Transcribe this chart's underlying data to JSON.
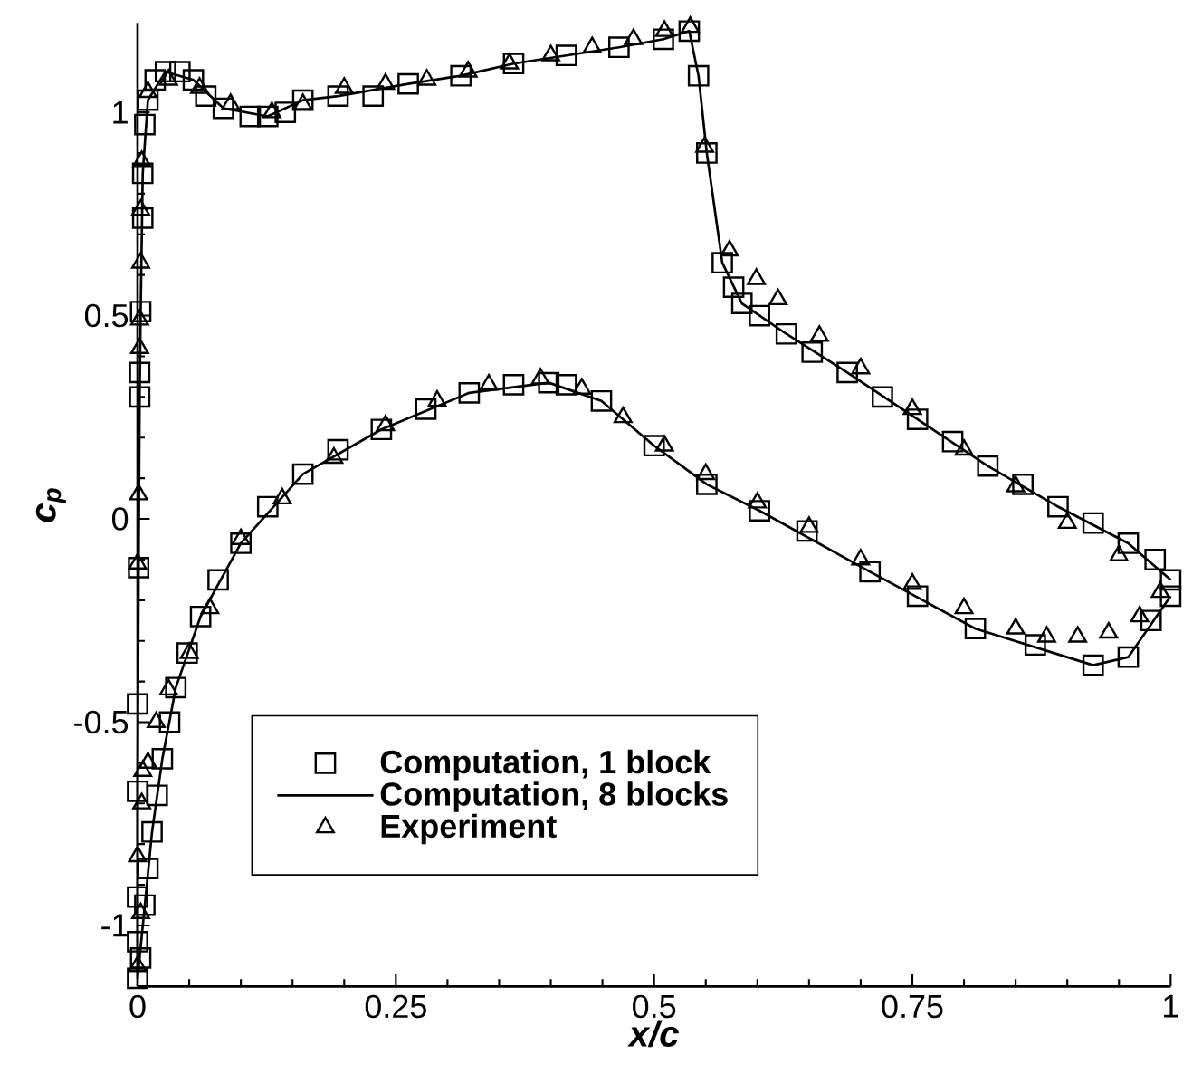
{
  "chart_data": {
    "type": "scatter",
    "xlabel": "*x/c*",
    "ylabel": "*c$_{p}$*",
    "xlim": [
      0,
      1
    ],
    "ylim": [
      -1.15,
      1.22
    ],
    "xticks": [
      0,
      0.25,
      0.5,
      0.75,
      1
    ],
    "yticks": [
      -1,
      -0.5,
      0,
      0.5,
      1
    ],
    "grid": false,
    "legend": "bottom left",
    "series": [
      {
        "name": "Computation, 1 block",
        "marker": "square",
        "color": "#000000",
        "x": [
          1.0,
          0.985,
          0.959,
          0.925,
          0.891,
          0.857,
          0.823,
          0.789,
          0.755,
          0.721,
          0.687,
          0.653,
          0.628,
          0.602,
          0.585,
          0.577,
          0.566,
          0.551,
          0.543,
          0.534,
          0.509,
          0.466,
          0.415,
          0.364,
          0.313,
          0.262,
          0.228,
          0.194,
          0.16,
          0.143,
          0.126,
          0.109,
          0.083,
          0.066,
          0.054,
          0.041,
          0.027,
          0.017,
          0.01,
          0.007,
          0.005,
          0.005,
          0.003,
          0.002,
          0.002,
          0.001,
          0.0,
          0.0,
          0.0,
          0.0,
          0.0,
          0.003,
          0.007,
          0.01,
          0.014,
          0.019,
          0.024,
          0.031,
          0.037,
          0.048,
          0.061,
          0.078,
          0.1,
          0.126,
          0.16,
          0.194,
          0.236,
          0.279,
          0.321,
          0.364,
          0.398,
          0.415,
          0.449,
          0.5,
          0.551,
          0.602,
          0.648,
          0.709,
          0.755,
          0.811,
          0.869,
          0.925,
          0.959,
          0.981,
          1.0
        ],
        "values": [
          -0.15,
          -0.1,
          -0.06,
          -0.01,
          0.03,
          0.085,
          0.13,
          0.19,
          0.245,
          0.3,
          0.36,
          0.41,
          0.455,
          0.5,
          0.53,
          0.57,
          0.63,
          0.9,
          1.09,
          1.2,
          1.18,
          1.16,
          1.14,
          1.12,
          1.09,
          1.07,
          1.04,
          1.04,
          1.03,
          1.0,
          0.99,
          0.99,
          1.01,
          1.04,
          1.08,
          1.1,
          1.1,
          1.08,
          1.03,
          0.97,
          0.85,
          0.74,
          0.51,
          0.36,
          0.3,
          -0.12,
          -0.455,
          -0.67,
          -0.93,
          -1.04,
          -1.13,
          -1.08,
          -0.95,
          -0.86,
          -0.77,
          -0.68,
          -0.59,
          -0.5,
          -0.415,
          -0.33,
          -0.24,
          -0.15,
          -0.06,
          0.03,
          0.11,
          0.17,
          0.22,
          0.27,
          0.31,
          0.33,
          0.335,
          0.33,
          0.29,
          0.18,
          0.085,
          0.02,
          -0.03,
          -0.13,
          -0.19,
          -0.27,
          -0.31,
          -0.36,
          -0.34,
          -0.25,
          -0.19
        ]
      },
      {
        "name": "Computation, 8 blocks",
        "type": "line",
        "marker": "none",
        "color": "#000000",
        "x": [
          1.0,
          0.959,
          0.891,
          0.823,
          0.755,
          0.687,
          0.628,
          0.585,
          0.566,
          0.551,
          0.543,
          0.534,
          0.509,
          0.466,
          0.415,
          0.364,
          0.313,
          0.262,
          0.194,
          0.16,
          0.126,
          0.083,
          0.054,
          0.027,
          0.01,
          0.005,
          0.003,
          0.002,
          0.001,
          0.0,
          0.0,
          0.0,
          0.007,
          0.014,
          0.024,
          0.037,
          0.061,
          0.1,
          0.16,
          0.236,
          0.321,
          0.398,
          0.449,
          0.5,
          0.551,
          0.602,
          0.709,
          0.811,
          0.925,
          0.959,
          1.0
        ],
        "values": [
          -0.15,
          -0.06,
          0.03,
          0.13,
          0.245,
          0.36,
          0.455,
          0.53,
          0.63,
          0.9,
          1.09,
          1.2,
          1.18,
          1.16,
          1.14,
          1.12,
          1.09,
          1.07,
          1.04,
          1.03,
          0.99,
          1.01,
          1.08,
          1.1,
          1.03,
          0.85,
          0.51,
          0.3,
          -0.12,
          -0.67,
          -1.13,
          -1.13,
          -0.95,
          -0.77,
          -0.59,
          -0.415,
          -0.24,
          -0.06,
          0.11,
          0.22,
          0.31,
          0.335,
          0.29,
          0.18,
          0.085,
          0.02,
          -0.13,
          -0.27,
          -0.36,
          -0.34,
          -0.19
        ]
      },
      {
        "name": "Experiment",
        "marker": "triangle",
        "color": "#000000",
        "x": [
          0.95,
          0.9,
          0.85,
          0.8,
          0.75,
          0.7,
          0.66,
          0.62,
          0.599,
          0.573,
          0.549,
          0.535,
          0.51,
          0.48,
          0.44,
          0.4,
          0.36,
          0.32,
          0.28,
          0.24,
          0.2,
          0.16,
          0.13,
          0.09,
          0.06,
          0.03,
          0.01,
          0.004,
          0.003,
          0.003,
          0.002,
          0.002,
          0.001,
          0.0,
          0.0,
          0.0,
          0.003,
          0.004,
          0.005,
          0.01,
          0.018,
          0.03,
          0.05,
          0.07,
          0.1,
          0.14,
          0.19,
          0.24,
          0.29,
          0.34,
          0.39,
          0.43,
          0.47,
          0.51,
          0.55,
          0.6,
          0.65,
          0.7,
          0.75,
          0.8,
          0.85,
          0.88,
          0.91,
          0.94,
          0.97,
          0.99
        ],
        "values": [
          -0.09,
          -0.01,
          0.08,
          0.17,
          0.27,
          0.37,
          0.45,
          0.54,
          0.59,
          0.66,
          0.915,
          1.21,
          1.2,
          1.18,
          1.16,
          1.14,
          1.12,
          1.1,
          1.08,
          1.07,
          1.06,
          1.02,
          1.0,
          1.02,
          1.06,
          1.08,
          1.05,
          0.88,
          0.76,
          0.63,
          0.49,
          0.42,
          0.06,
          -0.11,
          -0.83,
          -1.1,
          -0.97,
          -0.7,
          -0.62,
          -0.6,
          -0.5,
          -0.42,
          -0.33,
          -0.22,
          -0.05,
          0.05,
          0.15,
          0.23,
          0.29,
          0.33,
          0.345,
          0.32,
          0.25,
          0.18,
          0.11,
          0.04,
          -0.02,
          -0.1,
          -0.16,
          -0.22,
          -0.27,
          -0.29,
          -0.29,
          -0.28,
          -0.24,
          -0.18
        ]
      }
    ]
  }
}
